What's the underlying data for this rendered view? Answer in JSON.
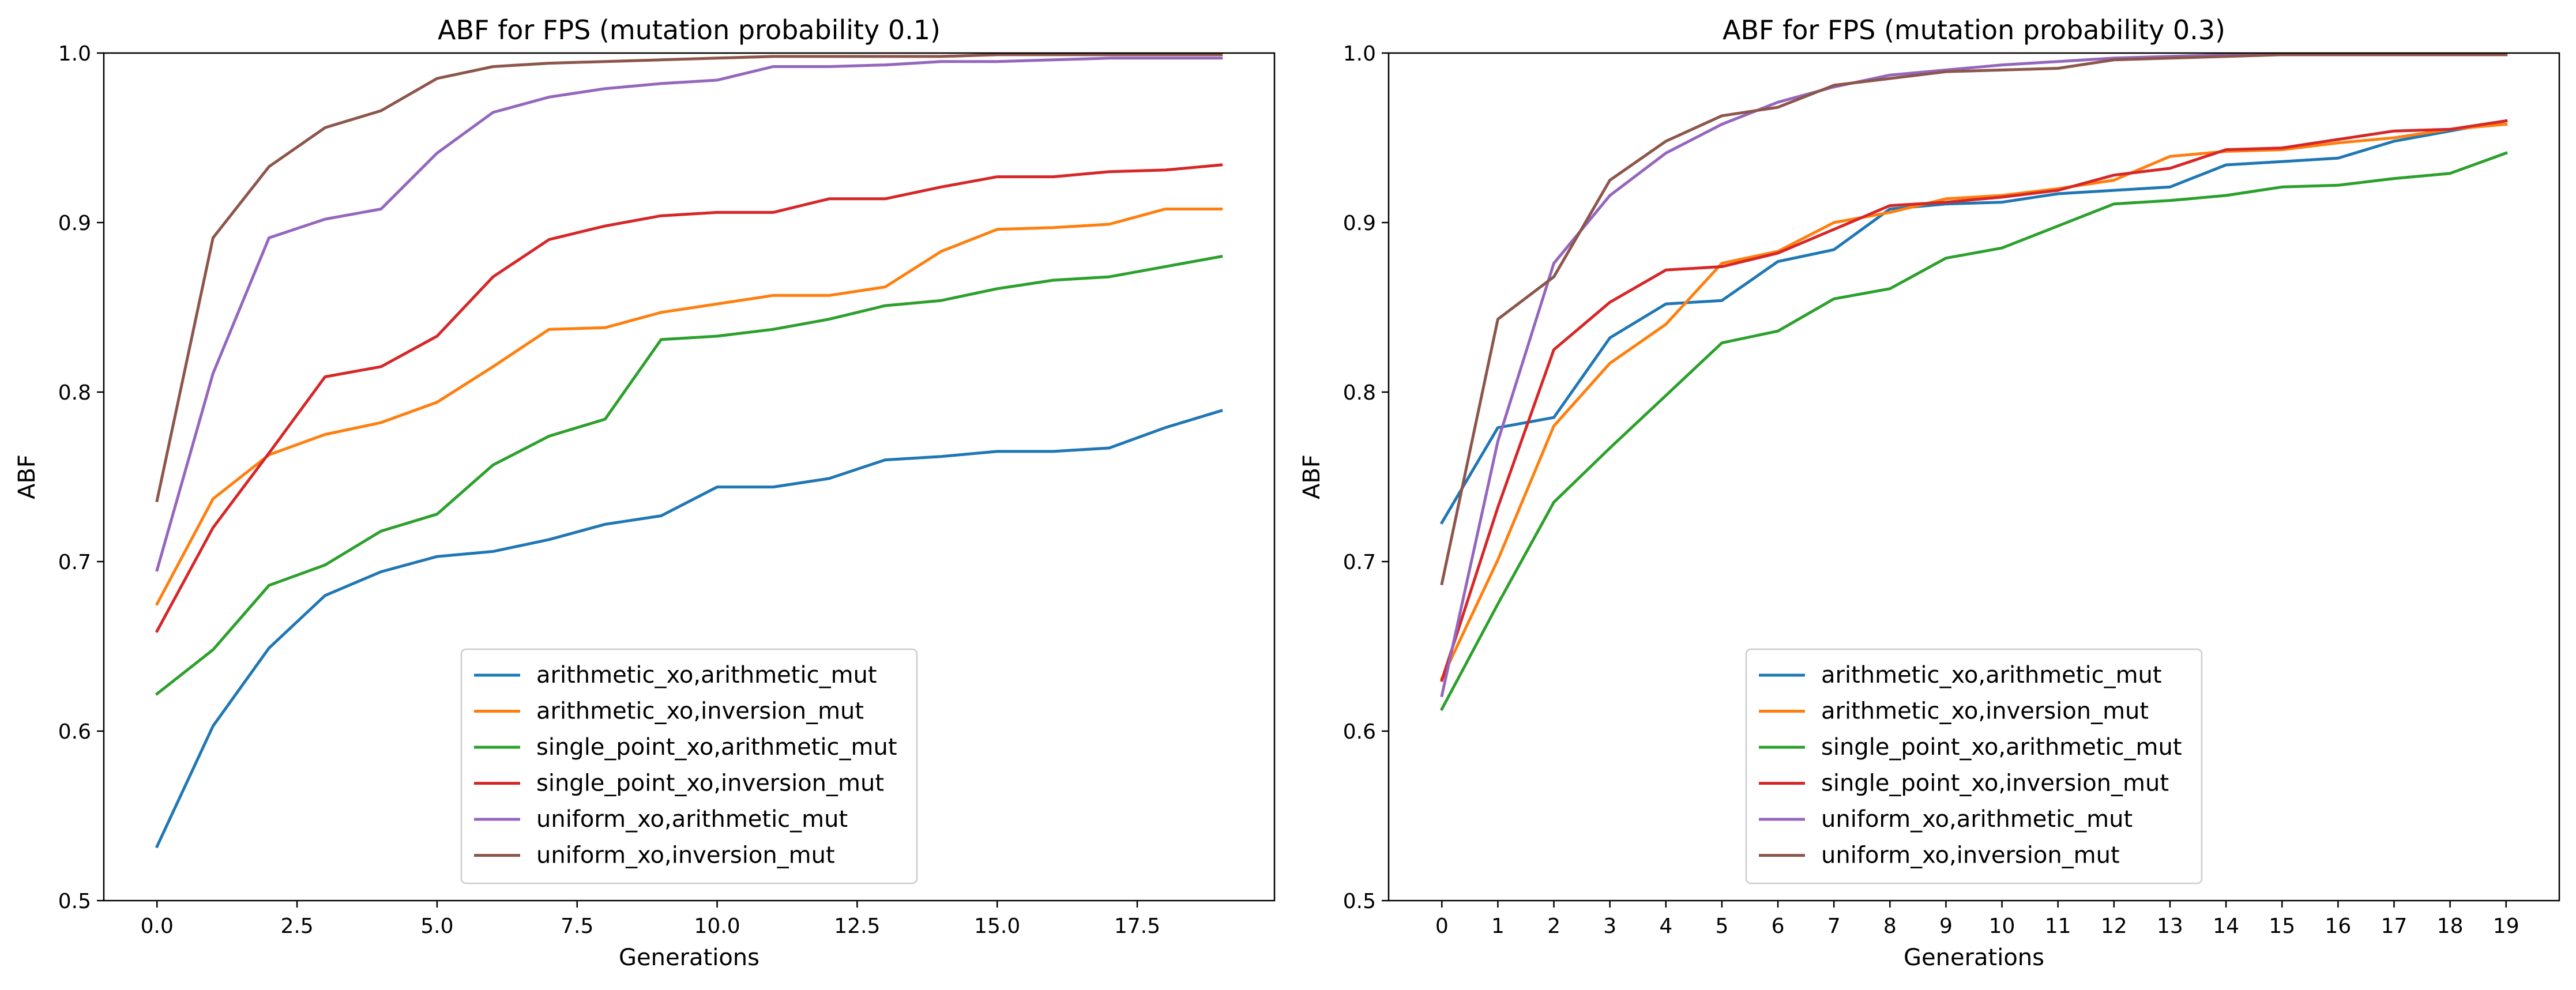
{
  "chart_data": [
    {
      "type": "line",
      "title": "ABF for FPS (mutation probability 0.1)",
      "xlabel": "Generations",
      "ylabel": "ABF",
      "xlim": [
        -0.95,
        19.95
      ],
      "ylim": [
        0.5,
        1.0
      ],
      "xticks": [
        0,
        2.5,
        5,
        7.5,
        10,
        12.5,
        15,
        17.5
      ],
      "xtick_labels": [
        "0.0",
        "2.5",
        "5.0",
        "7.5",
        "10.0",
        "12.5",
        "15.0",
        "17.5"
      ],
      "yticks": [
        0.5,
        0.6,
        0.7,
        0.8,
        0.9,
        1.0
      ],
      "ytick_labels": [
        "0.5",
        "0.6",
        "0.7",
        "0.8",
        "0.9",
        "1.0"
      ],
      "legend_position": "lower center",
      "x": [
        0,
        1,
        2,
        3,
        4,
        5,
        6,
        7,
        8,
        9,
        10,
        11,
        12,
        13,
        14,
        15,
        16,
        17,
        18,
        19
      ],
      "series": [
        {
          "name": "arithmetic_xo,arithmetic_mut",
          "color": "#1f77b4",
          "values": [
            0.532,
            0.603,
            0.649,
            0.68,
            0.694,
            0.703,
            0.706,
            0.713,
            0.722,
            0.727,
            0.744,
            0.744,
            0.749,
            0.76,
            0.762,
            0.765,
            0.765,
            0.767,
            0.779,
            0.789
          ]
        },
        {
          "name": "arithmetic_xo,inversion_mut",
          "color": "#ff7f0e",
          "values": [
            0.675,
            0.737,
            0.763,
            0.775,
            0.782,
            0.794,
            0.815,
            0.837,
            0.838,
            0.847,
            0.852,
            0.857,
            0.857,
            0.862,
            0.883,
            0.896,
            0.897,
            0.899,
            0.908,
            0.908
          ]
        },
        {
          "name": "single_point_xo,arithmetic_mut",
          "color": "#2ca02c",
          "values": [
            0.622,
            0.648,
            0.686,
            0.698,
            0.718,
            0.728,
            0.757,
            0.774,
            0.784,
            0.831,
            0.833,
            0.837,
            0.843,
            0.851,
            0.854,
            0.861,
            0.866,
            0.868,
            0.874,
            0.88
          ]
        },
        {
          "name": "single_point_xo,inversion_mut",
          "color": "#d62728",
          "values": [
            0.659,
            0.72,
            0.764,
            0.809,
            0.815,
            0.833,
            0.868,
            0.89,
            0.898,
            0.904,
            0.906,
            0.906,
            0.914,
            0.914,
            0.921,
            0.927,
            0.927,
            0.93,
            0.931,
            0.934
          ]
        },
        {
          "name": "uniform_xo,arithmetic_mut",
          "color": "#9467bd",
          "values": [
            0.695,
            0.811,
            0.891,
            0.902,
            0.908,
            0.941,
            0.965,
            0.974,
            0.979,
            0.982,
            0.984,
            0.992,
            0.992,
            0.993,
            0.995,
            0.995,
            0.996,
            0.997,
            0.997,
            0.997
          ]
        },
        {
          "name": "uniform_xo,inversion_mut",
          "color": "#8c564b",
          "values": [
            0.736,
            0.891,
            0.933,
            0.956,
            0.966,
            0.985,
            0.992,
            0.994,
            0.995,
            0.996,
            0.997,
            0.998,
            0.998,
            0.998,
            0.998,
            0.999,
            0.999,
            0.999,
            0.999,
            0.999
          ]
        }
      ]
    },
    {
      "type": "line",
      "title": "ABF for FPS (mutation probability 0.3)",
      "xlabel": "Generations",
      "ylabel": "ABF",
      "xlim": [
        -0.95,
        19.95
      ],
      "ylim": [
        0.5,
        1.0
      ],
      "xticks": [
        0,
        1,
        2,
        3,
        4,
        5,
        6,
        7,
        8,
        9,
        10,
        11,
        12,
        13,
        14,
        15,
        16,
        17,
        18,
        19
      ],
      "xtick_labels": [
        "0",
        "1",
        "2",
        "3",
        "4",
        "5",
        "6",
        "7",
        "8",
        "9",
        "10",
        "11",
        "12",
        "13",
        "14",
        "15",
        "16",
        "17",
        "18",
        "19"
      ],
      "yticks": [
        0.5,
        0.6,
        0.7,
        0.8,
        0.9,
        1.0
      ],
      "ytick_labels": [
        "0.5",
        "0.6",
        "0.7",
        "0.8",
        "0.9",
        "1.0"
      ],
      "legend_position": "lower center",
      "x": [
        0,
        1,
        2,
        3,
        4,
        5,
        6,
        7,
        8,
        9,
        10,
        11,
        12,
        13,
        14,
        15,
        16,
        17,
        18,
        19
      ],
      "series": [
        {
          "name": "arithmetic_xo,arithmetic_mut",
          "color": "#1f77b4",
          "values": [
            0.723,
            0.779,
            0.785,
            0.832,
            0.852,
            0.854,
            0.877,
            0.884,
            0.908,
            0.911,
            0.912,
            0.917,
            0.919,
            0.921,
            0.934,
            0.936,
            0.938,
            0.948,
            0.954,
            0.96
          ]
        },
        {
          "name": "arithmetic_xo,inversion_mut",
          "color": "#ff7f0e",
          "values": [
            0.631,
            0.701,
            0.78,
            0.817,
            0.84,
            0.876,
            0.883,
            0.9,
            0.906,
            0.914,
            0.916,
            0.92,
            0.925,
            0.939,
            0.942,
            0.943,
            0.947,
            0.95,
            0.955,
            0.958
          ]
        },
        {
          "name": "single_point_xo,arithmetic_mut",
          "color": "#2ca02c",
          "values": [
            0.613,
            0.675,
            0.735,
            0.767,
            0.798,
            0.829,
            0.836,
            0.855,
            0.861,
            0.879,
            0.885,
            0.898,
            0.911,
            0.913,
            0.916,
            0.921,
            0.922,
            0.926,
            0.929,
            0.941
          ]
        },
        {
          "name": "single_point_xo,inversion_mut",
          "color": "#d62728",
          "values": [
            0.63,
            0.732,
            0.825,
            0.853,
            0.872,
            0.874,
            0.882,
            0.896,
            0.91,
            0.912,
            0.915,
            0.919,
            0.928,
            0.932,
            0.943,
            0.944,
            0.949,
            0.954,
            0.955,
            0.96
          ]
        },
        {
          "name": "uniform_xo,arithmetic_mut",
          "color": "#9467bd",
          "values": [
            0.621,
            0.771,
            0.876,
            0.916,
            0.941,
            0.958,
            0.971,
            0.98,
            0.987,
            0.99,
            0.993,
            0.995,
            0.997,
            0.998,
            0.999,
            0.999,
            0.999,
            0.999,
            0.999,
            0.999
          ]
        },
        {
          "name": "uniform_xo,inversion_mut",
          "color": "#8c564b",
          "values": [
            0.687,
            0.843,
            0.868,
            0.925,
            0.948,
            0.963,
            0.968,
            0.981,
            0.985,
            0.989,
            0.99,
            0.991,
            0.996,
            0.997,
            0.998,
            0.999,
            0.999,
            0.999,
            0.999,
            0.999
          ]
        }
      ]
    }
  ]
}
